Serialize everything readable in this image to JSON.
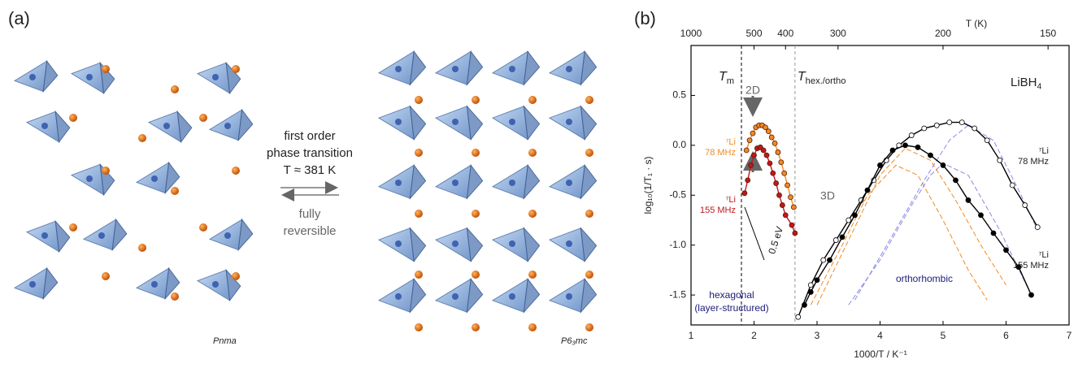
{
  "panel_a": {
    "label": "(a)",
    "transition_lines": [
      "first order",
      "phase transition",
      "T ≈ 381 K"
    ],
    "reversible_lines": [
      "fully",
      "reversible"
    ],
    "left_structure": "Pnma",
    "right_structure": "P6₃mc"
  },
  "chart_data": {
    "type": "scatter",
    "panel_label": "(b)",
    "x_label": "1000/T / K⁻¹",
    "y_label": "log₁₀(1/T₁ · s)",
    "x2_label": "T (K)",
    "xlim": [
      1,
      7
    ],
    "ylim": [
      -1.8,
      1.0
    ],
    "xticks": [
      1,
      2,
      3,
      4,
      5,
      6,
      7
    ],
    "yticks": [
      {
        "value": 0.5,
        "label": "0.5"
      },
      {
        "value": 0.0,
        "label": "0.0"
      },
      {
        "value": -0.5,
        "label": "-0.5"
      },
      {
        "value": -1.0,
        "label": "-1.0"
      },
      {
        "value": -1.5,
        "label": "-1.5"
      }
    ],
    "x2ticks": [
      1000,
      500,
      400,
      300,
      200,
      150
    ],
    "vlines": [
      {
        "x": 1.8,
        "text": "T",
        "sub": "m"
      },
      {
        "x": 2.65,
        "text": "T",
        "sub": "hex./ortho"
      }
    ],
    "compound": {
      "text": "LiBH",
      "sub": "4"
    },
    "annotations": [
      "2D",
      "3D",
      "0.5 eV",
      "hexagonal",
      "(layer-structured)",
      "orthorhombic"
    ],
    "series": [
      {
        "name": "⁷Li",
        "frequency": "78 MHz",
        "color": "#f08a24",
        "filled": true,
        "x": [
          1.88,
          1.93,
          1.98,
          2.03,
          2.08,
          2.13,
          2.18,
          2.23,
          2.28,
          2.33,
          2.38,
          2.43,
          2.48,
          2.53,
          2.58,
          2.63
        ],
        "values": [
          -0.05,
          0.05,
          0.12,
          0.18,
          0.2,
          0.2,
          0.18,
          0.14,
          0.08,
          0.02,
          -0.07,
          -0.17,
          -0.28,
          -0.4,
          -0.52,
          -0.62
        ]
      },
      {
        "name": "⁷Li",
        "frequency": "155 MHz",
        "color": "#c0181c",
        "filled": true,
        "x": [
          1.85,
          1.9,
          1.95,
          2.0,
          2.05,
          2.1,
          2.15,
          2.2,
          2.25,
          2.3,
          2.35,
          2.4,
          2.45,
          2.5,
          2.6,
          2.65
        ],
        "values": [
          -0.48,
          -0.35,
          -0.2,
          -0.1,
          -0.03,
          -0.02,
          -0.05,
          -0.1,
          -0.18,
          -0.28,
          -0.38,
          -0.5,
          -0.6,
          -0.7,
          -0.8,
          -0.88
        ]
      },
      {
        "name": "⁷Li",
        "frequency": "78 MHz",
        "color": "#000000",
        "filled": false,
        "x": [
          2.7,
          2.9,
          3.1,
          3.3,
          3.5,
          3.7,
          3.9,
          4.1,
          4.3,
          4.5,
          4.7,
          4.9,
          5.1,
          5.3,
          5.5,
          5.7,
          5.9,
          6.1,
          6.3,
          6.5
        ],
        "values": [
          -1.72,
          -1.4,
          -1.15,
          -0.95,
          -0.75,
          -0.55,
          -0.35,
          -0.15,
          0.0,
          0.1,
          0.17,
          0.2,
          0.23,
          0.23,
          0.17,
          0.05,
          -0.15,
          -0.4,
          -0.6,
          -0.82
        ]
      },
      {
        "name": "⁷Li",
        "frequency": "155 MHz",
        "color": "#000000",
        "filled": true,
        "x": [
          2.8,
          2.9,
          3.0,
          3.2,
          3.4,
          3.6,
          3.8,
          4.0,
          4.2,
          4.4,
          4.6,
          4.8,
          5.0,
          5.2,
          5.4,
          5.6,
          5.8,
          6.0,
          6.2,
          6.4
        ],
        "values": [
          -1.6,
          -1.47,
          -1.35,
          -1.15,
          -0.92,
          -0.7,
          -0.45,
          -0.2,
          -0.05,
          0.0,
          -0.02,
          -0.1,
          -0.2,
          -0.35,
          -0.55,
          -0.7,
          -0.88,
          -1.05,
          -1.22,
          -1.5
        ]
      }
    ],
    "fits": [
      {
        "color": "#f08a24",
        "x": [
          3.0,
          3.5,
          4.0,
          4.4,
          4.8,
          5.2,
          5.6,
          6.0
        ],
        "values": [
          -1.6,
          -0.95,
          -0.3,
          -0.03,
          -0.15,
          -0.55,
          -1.0,
          -1.4
        ]
      },
      {
        "color": "#f08a24",
        "x": [
          2.9,
          3.4,
          3.8,
          4.25,
          4.6,
          5.0,
          5.4,
          5.7
        ],
        "values": [
          -1.6,
          -1.0,
          -0.5,
          -0.2,
          -0.3,
          -0.75,
          -1.25,
          -1.55
        ]
      },
      {
        "color": "#8a8ae6",
        "x": [
          3.6,
          4.2,
          4.7,
          5.1,
          5.4,
          5.8,
          6.2,
          6.5
        ],
        "values": [
          -1.55,
          -0.9,
          -0.35,
          0.05,
          0.2,
          0.05,
          -0.45,
          -0.85
        ]
      },
      {
        "color": "#8a8ae6",
        "x": [
          3.5,
          4.0,
          4.5,
          4.8,
          5.0,
          5.4,
          5.9,
          6.4
        ],
        "values": [
          -1.6,
          -1.15,
          -0.6,
          -0.3,
          -0.18,
          -0.3,
          -0.85,
          -1.5
        ]
      }
    ]
  }
}
